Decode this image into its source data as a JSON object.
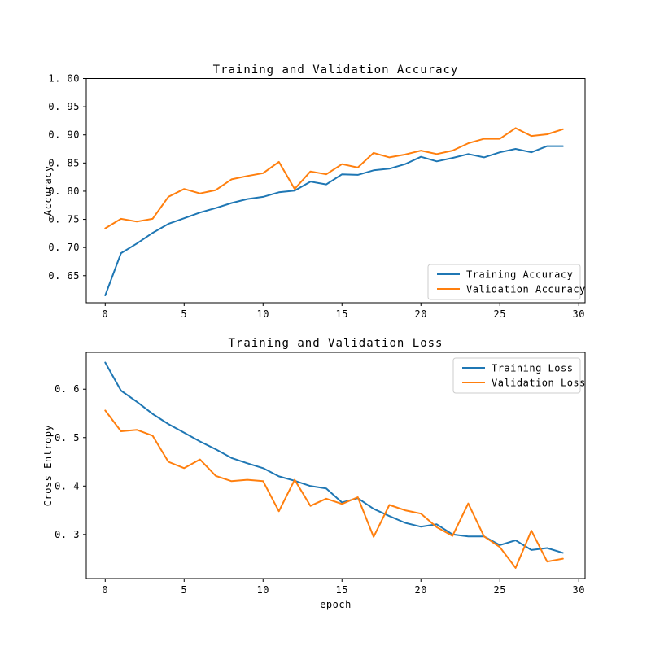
{
  "figure": {
    "background": "#ffffff",
    "spine_color": "#000000",
    "legend_border_color": "#cccccc",
    "accent_blue": "#1f77b4",
    "accent_orange": "#ff7f0e"
  },
  "chart_data": [
    {
      "type": "line",
      "title": "Training and Validation Accuracy",
      "xlabel": "",
      "ylabel": "Accuracy",
      "x": [
        0,
        1,
        2,
        3,
        4,
        5,
        6,
        7,
        8,
        9,
        10,
        11,
        12,
        13,
        14,
        15,
        16,
        17,
        18,
        19,
        20,
        21,
        22,
        23,
        24,
        25,
        26,
        27,
        28,
        29
      ],
      "series": [
        {
          "name": "Training Accuracy",
          "color": "#1f77b4",
          "values": [
            0.615,
            0.69,
            0.707,
            0.726,
            0.742,
            0.752,
            0.762,
            0.77,
            0.779,
            0.786,
            0.79,
            0.798,
            0.801,
            0.817,
            0.812,
            0.83,
            0.829,
            0.837,
            0.84,
            0.848,
            0.861,
            0.853,
            0.859,
            0.866,
            0.86,
            0.869,
            0.875,
            0.869,
            0.88,
            0.88
          ]
        },
        {
          "name": "Validation Accuracy",
          "color": "#ff7f0e",
          "values": [
            0.734,
            0.751,
            0.746,
            0.751,
            0.79,
            0.804,
            0.796,
            0.802,
            0.821,
            0.827,
            0.832,
            0.852,
            0.804,
            0.835,
            0.83,
            0.848,
            0.842,
            0.868,
            0.86,
            0.865,
            0.872,
            0.866,
            0.872,
            0.885,
            0.893,
            0.893,
            0.912,
            0.898,
            0.901,
            0.91
          ]
        }
      ],
      "xlim": [
        -1.2,
        30.4
      ],
      "ylim": [
        0.602,
        1.0
      ],
      "xticks": [
        0,
        5,
        10,
        15,
        20,
        25,
        30
      ],
      "xtick_labels": [
        "0",
        "5",
        "10",
        "15",
        "20",
        "25",
        "30"
      ],
      "yticks": [
        0.65,
        0.7,
        0.75,
        0.8,
        0.85,
        0.9,
        0.95,
        1.0
      ],
      "ytick_labels": [
        "0. 65",
        "0. 70",
        "0. 75",
        "0. 80",
        "0. 85",
        "0. 90",
        "0. 95",
        "1. 00"
      ],
      "grid": false,
      "legend_position": "lower right"
    },
    {
      "type": "line",
      "title": "Training and Validation Loss",
      "xlabel": "epoch",
      "ylabel": "Cross Entropy",
      "x": [
        0,
        1,
        2,
        3,
        4,
        5,
        6,
        7,
        8,
        9,
        10,
        11,
        12,
        13,
        14,
        15,
        16,
        17,
        18,
        19,
        20,
        21,
        22,
        23,
        24,
        25,
        26,
        27,
        28,
        29
      ],
      "series": [
        {
          "name": "Training Loss",
          "color": "#1f77b4",
          "values": [
            0.655,
            0.597,
            0.574,
            0.549,
            0.528,
            0.51,
            0.492,
            0.476,
            0.458,
            0.447,
            0.437,
            0.42,
            0.411,
            0.4,
            0.395,
            0.366,
            0.375,
            0.353,
            0.338,
            0.324,
            0.316,
            0.321,
            0.3,
            0.296,
            0.296,
            0.278,
            0.288,
            0.268,
            0.272,
            0.262
          ]
        },
        {
          "name": "Validation Loss",
          "color": "#ff7f0e",
          "values": [
            0.556,
            0.513,
            0.516,
            0.504,
            0.45,
            0.437,
            0.455,
            0.421,
            0.41,
            0.413,
            0.41,
            0.348,
            0.413,
            0.359,
            0.374,
            0.363,
            0.377,
            0.295,
            0.361,
            0.35,
            0.343,
            0.315,
            0.297,
            0.364,
            0.296,
            0.274,
            0.231,
            0.308,
            0.244,
            0.25
          ]
        }
      ],
      "xlim": [
        -1.2,
        30.4
      ],
      "ylim": [
        0.209,
        0.676
      ],
      "xticks": [
        0,
        5,
        10,
        15,
        20,
        25,
        30
      ],
      "xtick_labels": [
        "0",
        "5",
        "10",
        "15",
        "20",
        "25",
        "30"
      ],
      "yticks": [
        0.3,
        0.4,
        0.5,
        0.6
      ],
      "ytick_labels": [
        "0. 3",
        "0. 4",
        "0. 5",
        "0. 6"
      ],
      "grid": false,
      "legend_position": "upper right"
    }
  ]
}
